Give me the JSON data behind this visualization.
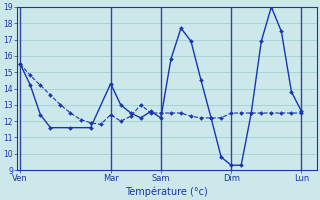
{
  "background_color": "#cce8ea",
  "grid_color": "#99cccc",
  "line_color": "#1a35b0",
  "separator_color": "#334499",
  "xlabel": "Température (°c)",
  "ylim": [
    9,
    19
  ],
  "yticks": [
    9,
    10,
    11,
    12,
    13,
    14,
    15,
    16,
    17,
    18,
    19
  ],
  "day_labels": [
    "Ven",
    "Mar",
    "Sam",
    "Dim",
    "Lun"
  ],
  "day_positions": [
    0,
    9,
    14,
    21,
    28
  ],
  "xlim": [
    -0.3,
    29.5
  ],
  "series1_x": [
    0,
    1,
    2,
    3,
    4,
    5,
    6,
    7,
    8,
    9,
    10,
    11,
    12,
    13,
    14,
    15,
    16,
    17,
    18,
    19,
    20,
    21,
    22,
    23,
    24,
    25,
    26,
    27,
    28
  ],
  "series1_y": [
    15.5,
    14.8,
    14.2,
    13.6,
    13.0,
    12.5,
    12.1,
    11.9,
    11.8,
    12.4,
    12.0,
    12.3,
    13.0,
    12.5,
    12.5,
    12.5,
    12.5,
    12.3,
    12.2,
    12.2,
    12.2,
    12.5,
    12.5,
    12.5,
    12.5,
    12.5,
    12.5,
    12.5,
    12.5
  ],
  "series2_x": [
    0,
    1,
    2,
    3,
    5,
    7,
    9,
    10,
    11,
    12,
    13,
    14,
    15,
    16,
    17,
    18,
    19,
    20,
    21,
    22,
    23,
    24,
    25,
    26,
    27,
    28
  ],
  "series2_y": [
    15.5,
    14.2,
    12.4,
    11.6,
    11.6,
    11.6,
    14.3,
    13.0,
    12.5,
    12.2,
    12.6,
    12.2,
    15.8,
    17.7,
    16.9,
    14.5,
    12.2,
    9.8,
    9.3,
    9.3,
    12.5,
    16.9,
    19.0,
    17.5,
    13.8,
    12.6
  ]
}
